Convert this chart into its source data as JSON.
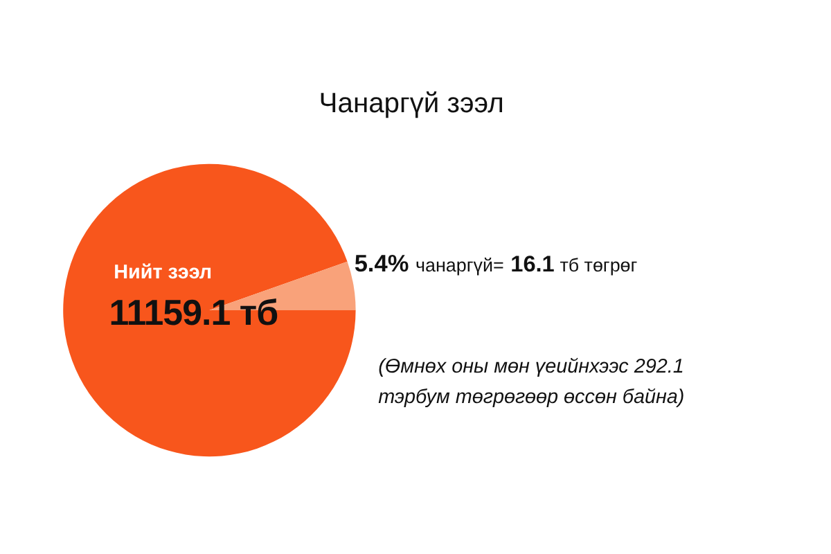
{
  "chart_data": {
    "type": "pie",
    "title": "Чанаргүй зээл",
    "categories": [
      "Нийт зээл",
      "чанаргүй="
    ],
    "values": [
      94.6,
      5.4
    ],
    "colors": [
      "#f8561c",
      "#f9a27a"
    ],
    "value_labels": [
      null,
      "5.4%"
    ],
    "annotations": [
      "16.1 тб төгрөг",
      "(Өмнөх оны мөн үеийнхээс 292.1 тэрбум төгрөгөөр өссөн байна)",
      "11159.1 тб"
    ],
    "legend": false
  }
}
